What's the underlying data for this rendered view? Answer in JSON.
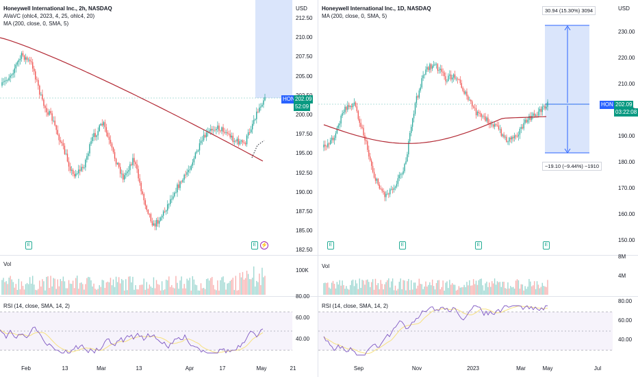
{
  "left": {
    "title": "Honeywell International Inc., 2h, NASDAQ",
    "indicator1": "AVaVC (ohlc4, 2023, 4, 25, ohlc4, 20)",
    "indicator2": "MA (200, close, 0, SMA, 5)",
    "currency": "USD",
    "price_ticks": [
      "212.50",
      "210.00",
      "207.50",
      "205.00",
      "202.50",
      "200.00",
      "197.50",
      "195.00",
      "192.50",
      "190.00",
      "187.50",
      "185.00",
      "182.50"
    ],
    "symbol_tag": "HON",
    "price_tag": "202.09",
    "countdown": "52:09",
    "volume_label": "Vol",
    "volume_tick": "100K",
    "rsi_label": "RSI (14, close, SMA, 14, 2)",
    "rsi_ticks": [
      "80.00",
      "60.00",
      "40.00"
    ],
    "x_ticks": [
      "Feb",
      "13",
      "Mar",
      "13",
      "Apr",
      "17",
      "May",
      "21"
    ],
    "earnings_icon": "E",
    "dividend_icon": "lightning-icon"
  },
  "right": {
    "title": "Honeywell International Inc., 1D, NASDAQ",
    "indicator1": "MA (200, close, 0, SMA, 5)",
    "currency": "USD",
    "price_ticks": [
      "230.00",
      "220.00",
      "210.00",
      "200.00",
      "190.00",
      "180.00",
      "170.00",
      "160.00",
      "150.00"
    ],
    "symbol_tag": "HON",
    "price_tag": "202.09",
    "countdown": "03:22:08",
    "measure_up": "30.94 (15.30%) 3094",
    "measure_down": "−19.10 (−9.44%) −1910",
    "volume_label": "Vol",
    "volume_ticks": [
      "8M",
      "4M"
    ],
    "rsi_label": "RSI (14, close, SMA, 14, 2)",
    "rsi_ticks": [
      "80.00",
      "60.00",
      "40.00"
    ],
    "x_ticks": [
      "Sep",
      "Nov",
      "2023",
      "Mar",
      "May",
      "Jul"
    ],
    "earnings_icon": "E"
  },
  "colors": {
    "up": "#26a69a",
    "down": "#ef5350",
    "ma": "#b22833",
    "rsi": "#7e57c2",
    "rsi_ma": "#f7e17e",
    "accent": "#2962ff",
    "range_fill": "#d6e2fb",
    "tag_blue": "#2962ff",
    "tag_green": "#089981"
  }
}
